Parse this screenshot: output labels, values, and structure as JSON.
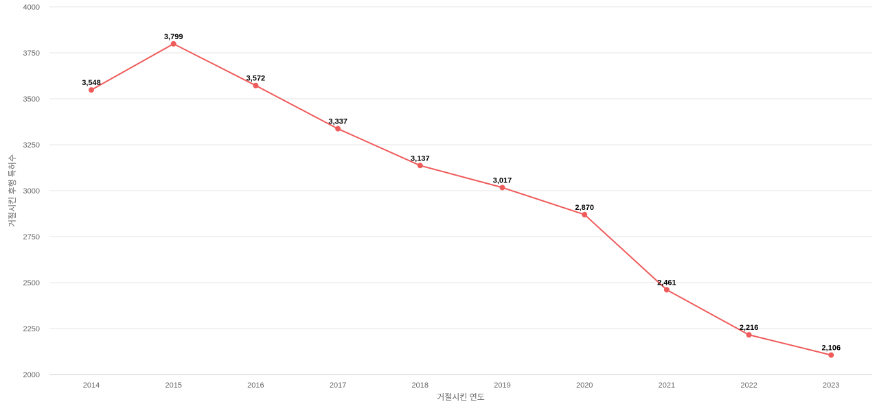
{
  "chart_data": {
    "type": "line",
    "title": "",
    "xlabel": "거절시킨 연도",
    "ylabel": "거절시킨 후행 특허수",
    "categories": [
      "2014",
      "2015",
      "2016",
      "2017",
      "2018",
      "2019",
      "2020",
      "2021",
      "2022",
      "2023"
    ],
    "series": [
      {
        "values": [
          3548,
          3799,
          3572,
          3337,
          3137,
          3017,
          2870,
          2461,
          2216,
          2106
        ],
        "data_labels": [
          "3,548",
          "3,799",
          "3,572",
          "3,337",
          "3,137",
          "3,017",
          "2,870",
          "2,461",
          "2,216",
          "2,106"
        ],
        "color": "#EF5A5A"
      }
    ],
    "ylim": [
      2000,
      4000
    ],
    "yticks": [
      "2000",
      "2250",
      "2500",
      "2750",
      "3000",
      "3250",
      "3500",
      "3750",
      "4000"
    ],
    "grid": true,
    "legend": "none",
    "grid_color": "#e6e6e6",
    "tick_color": "#666666",
    "label_color": "#000000"
  }
}
